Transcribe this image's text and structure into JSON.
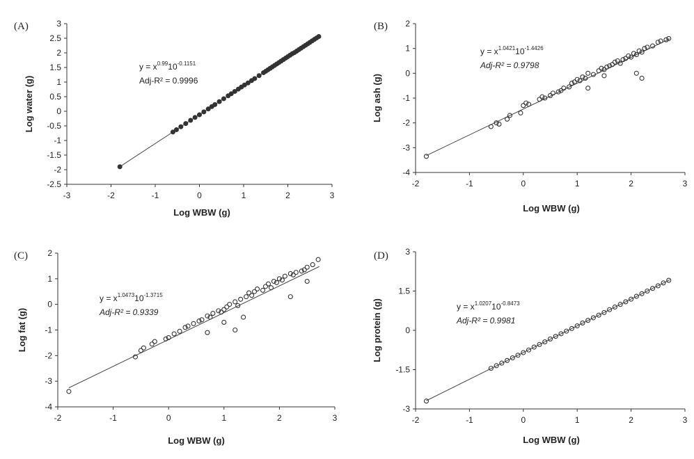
{
  "chart_data": [
    {
      "type": "scatter",
      "panel_label": "(A)",
      "xlabel": "Log WBW (g)",
      "ylabel": "Log water (g)",
      "xlim": [
        -3,
        3
      ],
      "ylim": [
        -2.5,
        3
      ],
      "xticks": [
        "-3",
        "-2",
        "-1",
        "0",
        "1",
        "2",
        "3"
      ],
      "yticks": [
        "-2.5",
        "-2",
        "-1.5",
        "-1",
        "-0.5",
        "0",
        "0.5",
        "1",
        "1.5",
        "2",
        "2.5",
        "3"
      ],
      "equation": {
        "base": "y = x",
        "exp1": "0.99",
        "mid": "10",
        "exp2": "-0.1151",
        "r2": "Adj-R² = 0.9996"
      },
      "marker": "filled",
      "fit": {
        "slope": 0.99,
        "intercept": -0.1151,
        "x_range": [
          -1.8,
          2.72
        ]
      },
      "x": [
        -1.8,
        -0.6,
        -0.52,
        -0.42,
        -0.31,
        -0.2,
        -0.1,
        0.0,
        0.1,
        0.2,
        0.28,
        0.35,
        0.45,
        0.55,
        0.65,
        0.72,
        0.8,
        0.88,
        0.95,
        1.02,
        1.1,
        1.18,
        1.25,
        1.35,
        1.45,
        1.5,
        1.55,
        1.6,
        1.65,
        1.7,
        1.75,
        1.8,
        1.85,
        1.9,
        1.95,
        2.0,
        2.05,
        2.1,
        2.15,
        2.2,
        2.25,
        2.3,
        2.35,
        2.4,
        2.45,
        2.5,
        2.55,
        2.6,
        2.65,
        2.7
      ],
      "y": [
        -1.9,
        -0.71,
        -0.63,
        -0.53,
        -0.42,
        -0.31,
        -0.21,
        -0.12,
        -0.02,
        0.08,
        0.16,
        0.23,
        0.33,
        0.43,
        0.53,
        0.6,
        0.68,
        0.76,
        0.83,
        0.9,
        0.97,
        1.05,
        1.12,
        1.22,
        1.32,
        1.37,
        1.42,
        1.47,
        1.52,
        1.57,
        1.62,
        1.67,
        1.72,
        1.77,
        1.82,
        1.87,
        1.92,
        1.97,
        2.01,
        2.06,
        2.11,
        2.16,
        2.21,
        2.26,
        2.31,
        2.36,
        2.41,
        2.46,
        2.51,
        2.56
      ]
    },
    {
      "type": "scatter",
      "panel_label": "(B)",
      "xlabel": "Log WBW (g)",
      "ylabel": "Log ash (g)",
      "xlim": [
        -2,
        3
      ],
      "ylim": [
        -4,
        2
      ],
      "xticks": [
        "-2",
        "-1",
        "0",
        "1",
        "2",
        "3"
      ],
      "yticks": [
        "-4",
        "-3",
        "-2",
        "-1",
        "0",
        "1",
        "2"
      ],
      "equation": {
        "base": "y = x",
        "exp1": "1.0421",
        "mid": "10",
        "exp2": "-1.4426",
        "r2": "Adj-R² = 0.9798"
      },
      "marker": "open",
      "fit": {
        "slope": 1.0421,
        "intercept": -1.4426,
        "x_range": [
          -1.8,
          2.72
        ]
      },
      "x": [
        -1.8,
        -0.6,
        -0.5,
        -0.45,
        -0.3,
        -0.25,
        -0.05,
        0.0,
        0.05,
        0.1,
        0.3,
        0.35,
        0.4,
        0.5,
        0.55,
        0.65,
        0.7,
        0.75,
        0.85,
        0.9,
        0.95,
        1.0,
        1.05,
        1.1,
        1.15,
        1.2,
        1.3,
        1.4,
        1.45,
        1.5,
        1.55,
        1.6,
        1.65,
        1.7,
        1.75,
        1.8,
        1.85,
        1.9,
        1.95,
        2.0,
        2.05,
        2.1,
        2.15,
        2.2,
        2.25,
        2.3,
        2.4,
        2.5,
        2.55,
        2.65,
        2.7,
        1.2,
        1.5,
        2.1,
        2.2
      ],
      "y": [
        -3.35,
        -2.15,
        -2.0,
        -2.05,
        -1.85,
        -1.7,
        -1.6,
        -1.3,
        -1.2,
        -1.25,
        -1.05,
        -0.95,
        -1.0,
        -0.9,
        -0.8,
        -0.75,
        -0.7,
        -0.6,
        -0.55,
        -0.4,
        -0.35,
        -0.25,
        -0.3,
        -0.15,
        -0.2,
        0.0,
        -0.05,
        0.1,
        0.2,
        0.15,
        0.25,
        0.3,
        0.35,
        0.45,
        0.5,
        0.4,
        0.55,
        0.6,
        0.7,
        0.65,
        0.8,
        0.75,
        0.9,
        0.85,
        1.0,
        1.05,
        1.1,
        1.25,
        1.3,
        1.35,
        1.4,
        -0.6,
        -0.1,
        0.0,
        -0.2
      ]
    },
    {
      "type": "scatter",
      "panel_label": "(C)",
      "xlabel": "Log WBW (g)",
      "ylabel": "Log fat (g)",
      "xlim": [
        -2,
        3
      ],
      "ylim": [
        -4,
        2
      ],
      "xticks": [
        "-2",
        "-1",
        "0",
        "1",
        "2",
        "3"
      ],
      "yticks": [
        "-4",
        "-3",
        "-2",
        "-1",
        "0",
        "1",
        "2"
      ],
      "equation": {
        "base": "y = x",
        "exp1": "1.0473",
        "mid": "10",
        "exp2": "-1.3715",
        "r2": "Adj-R² = 0.9339"
      },
      "marker": "open",
      "fit": {
        "slope": 1.0473,
        "intercept": -1.3715,
        "x_range": [
          -1.8,
          2.72
        ]
      },
      "x": [
        -1.8,
        -0.6,
        -0.5,
        -0.45,
        -0.3,
        -0.25,
        -0.05,
        0.0,
        0.1,
        0.2,
        0.3,
        0.35,
        0.45,
        0.55,
        0.6,
        0.7,
        0.75,
        0.8,
        0.9,
        0.95,
        1.0,
        1.05,
        1.1,
        1.2,
        1.25,
        1.3,
        1.4,
        1.45,
        1.5,
        1.55,
        1.6,
        1.7,
        1.75,
        1.8,
        1.85,
        1.9,
        1.95,
        2.0,
        2.05,
        2.1,
        2.2,
        2.25,
        2.3,
        2.4,
        2.45,
        2.5,
        2.6,
        2.7,
        1.2,
        1.35,
        0.7,
        1.0,
        2.2,
        2.5
      ],
      "y": [
        -3.4,
        -2.05,
        -1.8,
        -1.7,
        -1.55,
        -1.45,
        -1.35,
        -1.3,
        -1.15,
        -1.05,
        -0.9,
        -0.85,
        -0.75,
        -0.65,
        -0.6,
        -0.45,
        -0.5,
        -0.35,
        -0.25,
        -0.3,
        -0.2,
        -0.1,
        0.0,
        0.1,
        -0.05,
        0.2,
        0.3,
        0.45,
        0.35,
        0.5,
        0.6,
        0.55,
        0.7,
        0.8,
        0.65,
        0.9,
        0.85,
        1.0,
        0.95,
        1.1,
        1.2,
        1.15,
        1.25,
        1.3,
        1.35,
        1.45,
        1.55,
        1.75,
        -1.0,
        -0.5,
        -1.1,
        -0.7,
        0.3,
        0.9
      ]
    },
    {
      "type": "scatter",
      "panel_label": "(D)",
      "xlabel": "Log WBW (g)",
      "ylabel": "Log protein (g)",
      "xlim": [
        -2,
        3
      ],
      "ylim": [
        -3,
        3
      ],
      "xticks": [
        "-2",
        "-1",
        "0",
        "1",
        "2",
        "3"
      ],
      "yticks": [
        "-3",
        "-1.5",
        "0",
        "1.5",
        "3"
      ],
      "equation": {
        "base": "y = x",
        "exp1": "1.0207",
        "mid": "10",
        "exp2": "-0.8473",
        "r2": "Adj-R² = 0.9981"
      },
      "marker": "open",
      "fit": {
        "slope": 1.0207,
        "intercept": -0.8473,
        "x_range": [
          -1.8,
          2.72
        ]
      },
      "x": [
        -1.8,
        -0.6,
        -0.5,
        -0.4,
        -0.3,
        -0.2,
        -0.1,
        0.0,
        0.1,
        0.2,
        0.3,
        0.4,
        0.5,
        0.6,
        0.7,
        0.8,
        0.9,
        1.0,
        1.1,
        1.2,
        1.3,
        1.4,
        1.5,
        1.6,
        1.7,
        1.8,
        1.9,
        2.0,
        2.1,
        2.2,
        2.3,
        2.4,
        2.5,
        2.6,
        2.7
      ],
      "y": [
        -2.7,
        -1.45,
        -1.35,
        -1.25,
        -1.15,
        -1.05,
        -0.95,
        -0.85,
        -0.75,
        -0.64,
        -0.54,
        -0.44,
        -0.33,
        -0.23,
        -0.13,
        -0.03,
        0.07,
        0.17,
        0.28,
        0.38,
        0.48,
        0.58,
        0.68,
        0.79,
        0.89,
        0.99,
        1.09,
        1.19,
        1.3,
        1.4,
        1.5,
        1.6,
        1.7,
        1.81,
        1.91
      ]
    }
  ]
}
